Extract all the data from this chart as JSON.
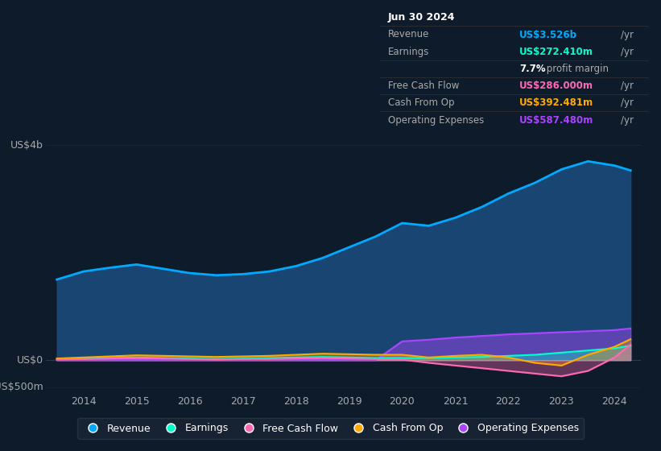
{
  "bg_color": "#0d1b2a",
  "plot_bg_color": "#0d1b2a",
  "years": [
    2013.5,
    2014,
    2014.5,
    2015,
    2015.5,
    2016,
    2016.5,
    2017,
    2017.5,
    2018,
    2018.5,
    2019,
    2019.5,
    2020,
    2020.5,
    2021,
    2021.5,
    2022,
    2022.5,
    2023,
    2023.5,
    2024,
    2024.3
  ],
  "revenue": [
    1.5,
    1.65,
    1.72,
    1.78,
    1.7,
    1.62,
    1.58,
    1.6,
    1.65,
    1.75,
    1.9,
    2.1,
    2.3,
    2.55,
    2.5,
    2.65,
    2.85,
    3.1,
    3.3,
    3.55,
    3.7,
    3.62,
    3.53
  ],
  "earnings": [
    0.02,
    0.03,
    0.04,
    0.05,
    0.04,
    0.03,
    0.02,
    0.03,
    0.04,
    0.05,
    0.06,
    0.05,
    0.04,
    0.04,
    0.04,
    0.05,
    0.06,
    0.08,
    0.1,
    0.14,
    0.18,
    0.22,
    0.27
  ],
  "fcf": [
    0.01,
    0.02,
    0.03,
    0.04,
    0.03,
    0.02,
    0.01,
    0.02,
    0.02,
    0.03,
    0.04,
    0.03,
    0.02,
    0.01,
    -0.05,
    -0.1,
    -0.15,
    -0.2,
    -0.25,
    -0.3,
    -0.2,
    0.05,
    0.29
  ],
  "cash_from_op": [
    0.03,
    0.05,
    0.07,
    0.09,
    0.08,
    0.07,
    0.06,
    0.07,
    0.08,
    0.1,
    0.12,
    0.11,
    0.1,
    0.1,
    0.05,
    0.08,
    0.1,
    0.05,
    -0.05,
    -0.1,
    0.1,
    0.25,
    0.39
  ],
  "op_expenses": [
    0.0,
    0.0,
    0.0,
    0.0,
    0.0,
    0.0,
    0.0,
    0.0,
    0.0,
    0.0,
    0.0,
    0.0,
    0.0,
    0.35,
    0.38,
    0.42,
    0.45,
    0.48,
    0.5,
    0.52,
    0.54,
    0.56,
    0.59
  ],
  "revenue_color": "#00aaff",
  "earnings_color": "#00ffcc",
  "fcf_color": "#ff69b4",
  "cash_from_op_color": "#ffaa00",
  "op_expenses_color": "#aa44ff",
  "revenue_fill": "#1a4a7a",
  "grid_color": "#2a3a4a",
  "text_color": "#aaaaaa",
  "white_color": "#ffffff",
  "xtick_labels": [
    "2014",
    "2015",
    "2016",
    "2017",
    "2018",
    "2019",
    "2020",
    "2021",
    "2022",
    "2023",
    "2024"
  ],
  "xtick_positions": [
    2014,
    2015,
    2016,
    2017,
    2018,
    2019,
    2020,
    2021,
    2022,
    2023,
    2024
  ],
  "legend_labels": [
    "Revenue",
    "Earnings",
    "Free Cash Flow",
    "Cash From Op",
    "Operating Expenses"
  ],
  "legend_colors": [
    "#00aaff",
    "#00ffcc",
    "#ff69b4",
    "#ffaa00",
    "#aa44ff"
  ],
  "info_rows": [
    {
      "label": "Jun 30 2024",
      "value": "",
      "val_color": "#ffffff",
      "label_color": "#ffffff",
      "bold": true
    },
    {
      "label": "Revenue",
      "value": "US$3.526b",
      "val_color": "#00aaff",
      "label_color": "#aaaaaa",
      "bold": false
    },
    {
      "label": "Earnings",
      "value": "US$272.410m",
      "val_color": "#00ffcc",
      "label_color": "#aaaaaa",
      "bold": false
    },
    {
      "label": "",
      "value": "7.7%",
      "val_color": "#ffffff",
      "label_color": "#aaaaaa",
      "bold": false,
      "suffix": " profit margin"
    },
    {
      "label": "Free Cash Flow",
      "value": "US$286.000m",
      "val_color": "#ff69b4",
      "label_color": "#aaaaaa",
      "bold": false
    },
    {
      "label": "Cash From Op",
      "value": "US$392.481m",
      "val_color": "#ffaa00",
      "label_color": "#aaaaaa",
      "bold": false
    },
    {
      "label": "Operating Expenses",
      "value": "US$587.480m",
      "val_color": "#aa44ff",
      "label_color": "#aaaaaa",
      "bold": false
    }
  ]
}
